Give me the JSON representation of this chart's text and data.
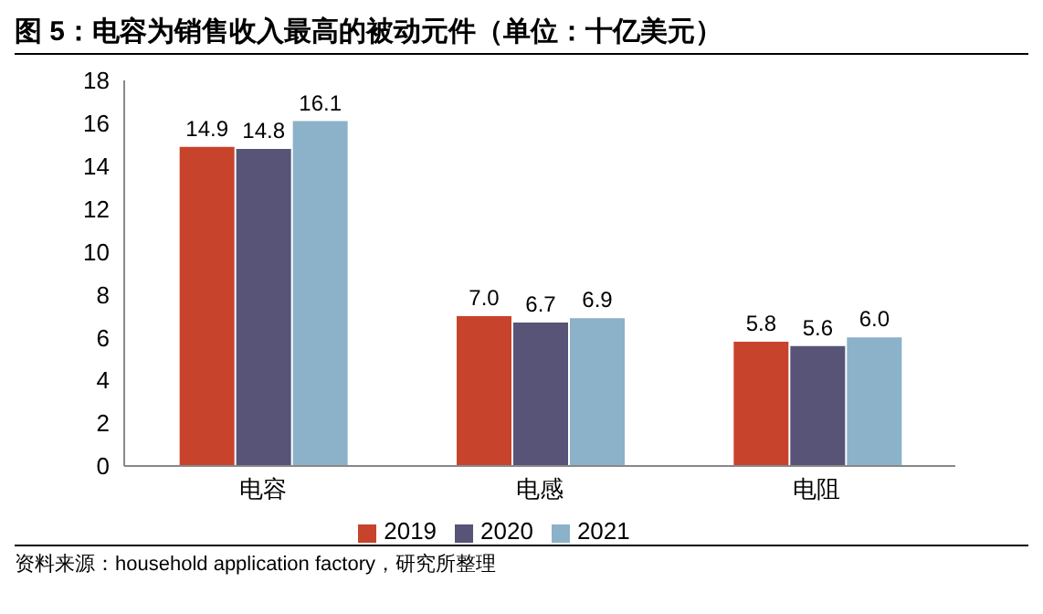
{
  "chart_data": {
    "type": "bar",
    "title": "图 5：电容为销售收入最高的被动元件（单位：十亿美元）",
    "categories": [
      "电容",
      "电感",
      "电阻"
    ],
    "series": [
      {
        "name": "2019",
        "color": "#c8432b",
        "values": [
          14.9,
          7.0,
          5.8
        ]
      },
      {
        "name": "2020",
        "color": "#575478",
        "values": [
          14.8,
          6.7,
          5.6
        ]
      },
      {
        "name": "2021",
        "color": "#8cb2c9",
        "values": [
          16.1,
          6.9,
          6.0
        ]
      }
    ],
    "value_labels": [
      [
        "14.9",
        "7.0",
        "5.8"
      ],
      [
        "14.8",
        "6.7",
        "5.6"
      ],
      [
        "16.1",
        "6.9",
        "6.0"
      ]
    ],
    "ylim": [
      0,
      18
    ],
    "yticks": [
      0,
      2,
      4,
      6,
      8,
      10,
      12,
      14,
      16,
      18
    ],
    "grid": false,
    "legend": "bottom",
    "annotations": [
      "资料来源：household application factory，研究所整理"
    ]
  }
}
